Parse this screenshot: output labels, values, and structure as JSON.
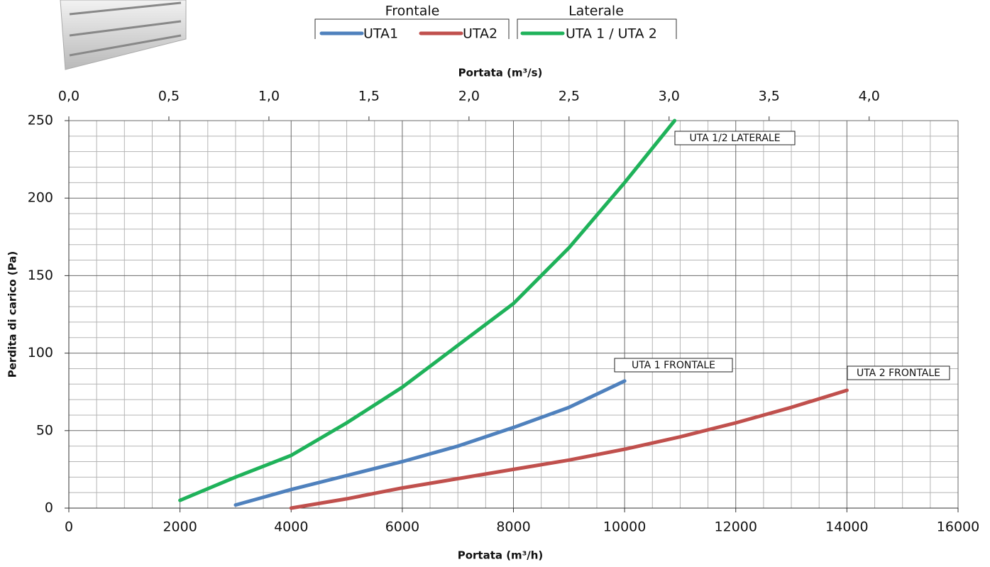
{
  "chart_data": {
    "type": "line",
    "x_title": "Portata (m³/h)",
    "x2_title": "Portata (m³/s)",
    "y_title": "Perdita di carico (Pa)",
    "xlim": [
      0,
      16000
    ],
    "xticks": [
      0,
      2000,
      4000,
      6000,
      8000,
      10000,
      12000,
      14000,
      16000
    ],
    "x2lim": [
      0,
      4.4444
    ],
    "x2ticks": [
      {
        "value": 0,
        "label": "0,0"
      },
      {
        "value": 0.5,
        "label": "0,5"
      },
      {
        "value": 1,
        "label": "1,0"
      },
      {
        "value": 1.5,
        "label": "1,5"
      },
      {
        "value": 2,
        "label": "2,0"
      },
      {
        "value": 2.5,
        "label": "2,5"
      },
      {
        "value": 3,
        "label": "3,0"
      },
      {
        "value": 3.5,
        "label": "3,5"
      },
      {
        "value": 4,
        "label": "4,0"
      }
    ],
    "ylim": [
      0,
      250
    ],
    "yticks": [
      0,
      50,
      100,
      150,
      200,
      250
    ],
    "grid": true,
    "legend_groups": [
      "Frontale",
      "Laterale"
    ],
    "series": [
      {
        "name": "UTA1",
        "color": "#4f81bd",
        "x": [
          3000,
          4000,
          5000,
          6000,
          7000,
          8000,
          9000,
          10000
        ],
        "values": [
          2,
          12,
          21,
          30,
          40,
          52,
          65,
          82
        ]
      },
      {
        "name": "UTA2",
        "color": "#c0504d",
        "x": [
          4000,
          5000,
          6000,
          7000,
          8000,
          9000,
          10000,
          11000,
          12000,
          13000,
          14000
        ],
        "values": [
          0,
          6,
          13,
          19,
          25,
          31,
          38,
          46,
          55,
          65,
          76
        ]
      },
      {
        "name": "UTA 1 / UTA 2",
        "color": "#1fb25a",
        "x": [
          2000,
          3000,
          4000,
          5000,
          6000,
          7000,
          8000,
          9000,
          10000,
          10900
        ],
        "values": [
          5,
          20,
          34,
          55,
          78,
          105,
          132,
          168,
          210,
          250
        ]
      }
    ],
    "annotations": [
      "UTA 1/2 LATERALE",
      "UTA 1 FRONTALE",
      "UTA 2 FRONTALE"
    ]
  }
}
